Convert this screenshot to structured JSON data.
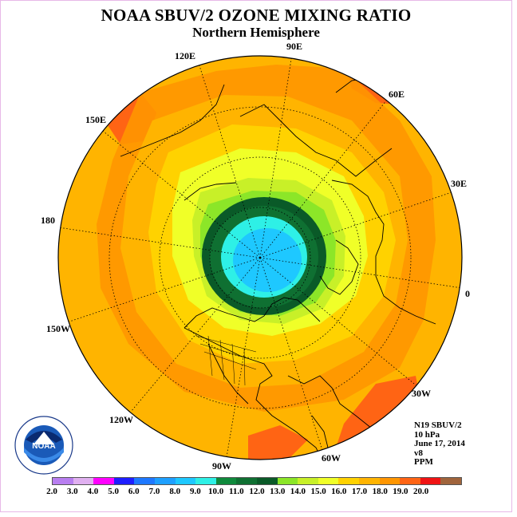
{
  "title": "NOAA SBUV/2 OZONE MIXING RATIO",
  "subtitle": "Northern Hemisphere",
  "longitude_labels": [
    "120E",
    "90E",
    "60E",
    "150E",
    "30E",
    "180",
    "0",
    "150W",
    "30W",
    "120W",
    "60W",
    "90W"
  ],
  "info": {
    "instrument": "N19 SBUV/2",
    "level": "10 hPa",
    "date": "June 17, 2014",
    "version": "v8",
    "units": "PPM"
  },
  "colorbar": {
    "colors": [
      "#b87ef0",
      "#e0b0f0",
      "#ff00ff",
      "#1e1eff",
      "#1e78ff",
      "#1ea0ff",
      "#1ec8ff",
      "#2ef0e6",
      "#0f8a3c",
      "#0f7032",
      "#0a5a28",
      "#8ce628",
      "#c8f028",
      "#f0ff28",
      "#ffd200",
      "#ffb400",
      "#ff9600",
      "#ff6414",
      "#f01414",
      "#a0643c"
    ],
    "labels": [
      "2.0",
      "3.0",
      "4.0",
      "5.0",
      "6.0",
      "7.0",
      "8.0",
      "9.0",
      "10.0",
      "11.0",
      "12.0",
      "13.0",
      "14.0",
      "15.0",
      "16.0",
      "17.0",
      "18.0",
      "19.0",
      "20.0"
    ]
  },
  "logo": {
    "text": "NOAA",
    "ring_text": "NATIONAL OCEANIC AND ATMOSPHERIC ADMINISTRATION · U.S. DEPARTMENT OF COMMERCE"
  }
}
